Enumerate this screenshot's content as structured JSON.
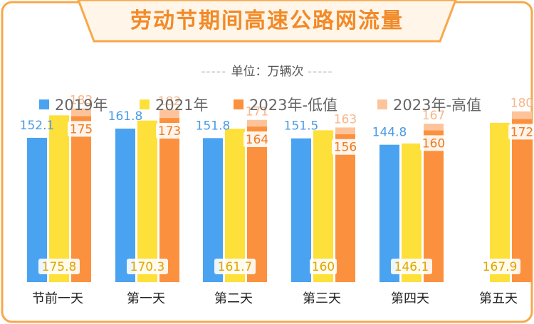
{
  "header": {
    "title": "劳动节期间高速公路网流量",
    "unit": "单位：万辆次"
  },
  "colors": {
    "s2019": "#4aa3f0",
    "s2021": "#fde03a",
    "s2023low": "#fb913e",
    "s2023high": "#fdc49b",
    "accent": "#f28a28"
  },
  "legend": [
    {
      "label": "2019年",
      "color": "#4aa3f0"
    },
    {
      "label": "2021年",
      "color": "#fde03a"
    },
    {
      "label": "2023年-低值",
      "color": "#fb913e"
    },
    {
      "label": "2023年-高值",
      "color": "#fdc49b"
    }
  ],
  "chart_data": {
    "type": "bar",
    "title": "劳动节期间高速公路网流量",
    "unit": "单位：万辆次",
    "categories": [
      "节前一天",
      "第一天",
      "第二天",
      "第三天",
      "第四天",
      "第五天"
    ],
    "series": [
      {
        "name": "2019年",
        "values": [
          152.1,
          161.8,
          151.8,
          151.5,
          144.8,
          null
        ]
      },
      {
        "name": "2021年",
        "values": [
          175.8,
          170.3,
          161.7,
          160,
          146.1,
          167.9
        ]
      },
      {
        "name": "2023年-低值",
        "values": [
          175,
          173,
          164,
          156,
          160,
          172
        ]
      },
      {
        "name": "2023年-高值",
        "values": [
          183,
          182,
          171,
          163,
          167,
          180
        ]
      }
    ],
    "ylim": [
      0,
      200
    ],
    "grid": false,
    "legend_position": "top"
  }
}
